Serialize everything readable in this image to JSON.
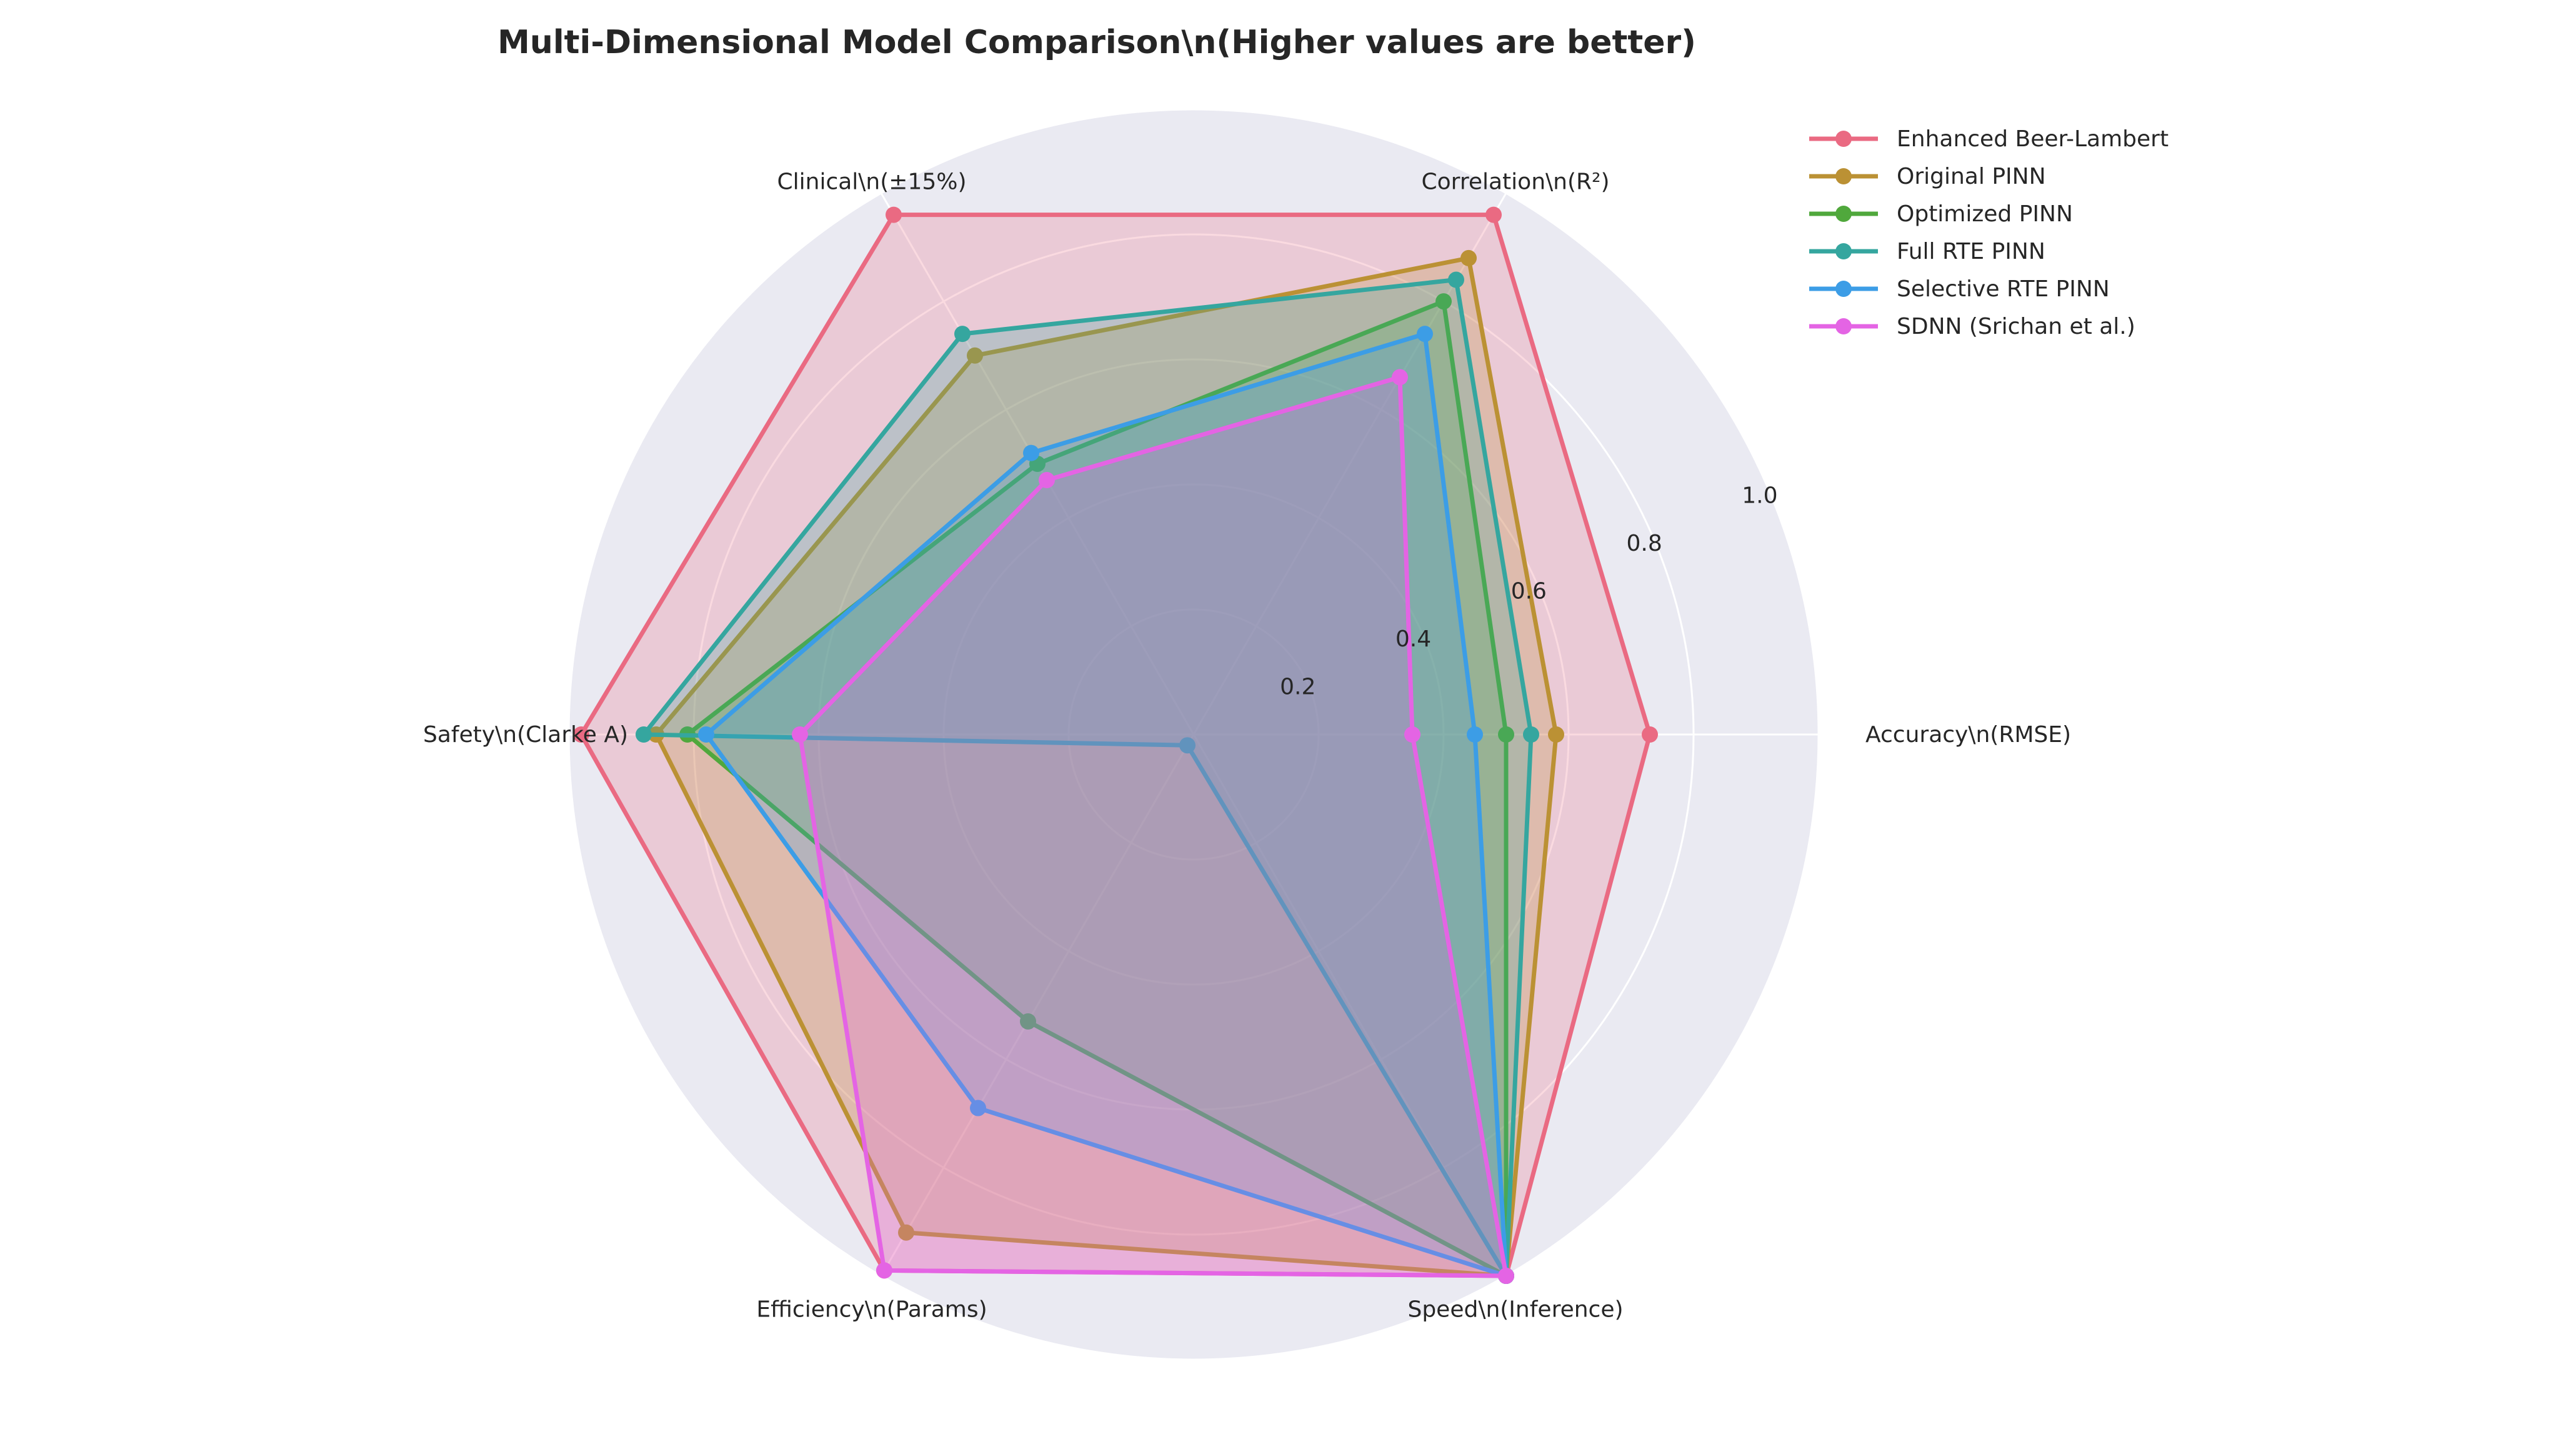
{
  "chart_data": {
    "type": "radar",
    "title": "Multi-Dimensional Model Comparison\\n(Higher values are better)",
    "axes": [
      "Accuracy\\n(RMSE)",
      "Correlation\\n(R²)",
      "Clinical\\n(±15%)",
      "Safety\\n(Clarke A)",
      "Efficiency\\n(Params)",
      "Speed\\n(Inference)"
    ],
    "rlim": [
      0,
      1.0
    ],
    "rticks": [
      "0.2",
      "0.4",
      "0.6",
      "0.8",
      "1.0"
    ],
    "grid": true,
    "legend_position": "top-right",
    "series": [
      {
        "name": "Enhanced Beer-Lambert",
        "color": "#ea6a82",
        "values": [
          0.73,
          0.96,
          0.96,
          0.98,
          0.99,
          1.0
        ]
      },
      {
        "name": "Original PINN",
        "color": "#bb9134",
        "values": [
          0.58,
          0.88,
          0.7,
          0.86,
          0.92,
          1.0
        ]
      },
      {
        "name": "Optimized PINN",
        "color": "#50a83c",
        "values": [
          0.5,
          0.8,
          0.5,
          0.81,
          0.53,
          1.0
        ]
      },
      {
        "name": "Full RTE PINN",
        "color": "#35a69f",
        "values": [
          0.54,
          0.84,
          0.74,
          0.88,
          0.02,
          1.0
        ]
      },
      {
        "name": "Selective RTE PINN",
        "color": "#3c9de6",
        "values": [
          0.45,
          0.74,
          0.52,
          0.78,
          0.69,
          1.0
        ]
      },
      {
        "name": "SDNN (Srichan et al.)",
        "color": "#e464e4",
        "values": [
          0.35,
          0.66,
          0.47,
          0.63,
          0.99,
          1.0
        ]
      }
    ]
  }
}
